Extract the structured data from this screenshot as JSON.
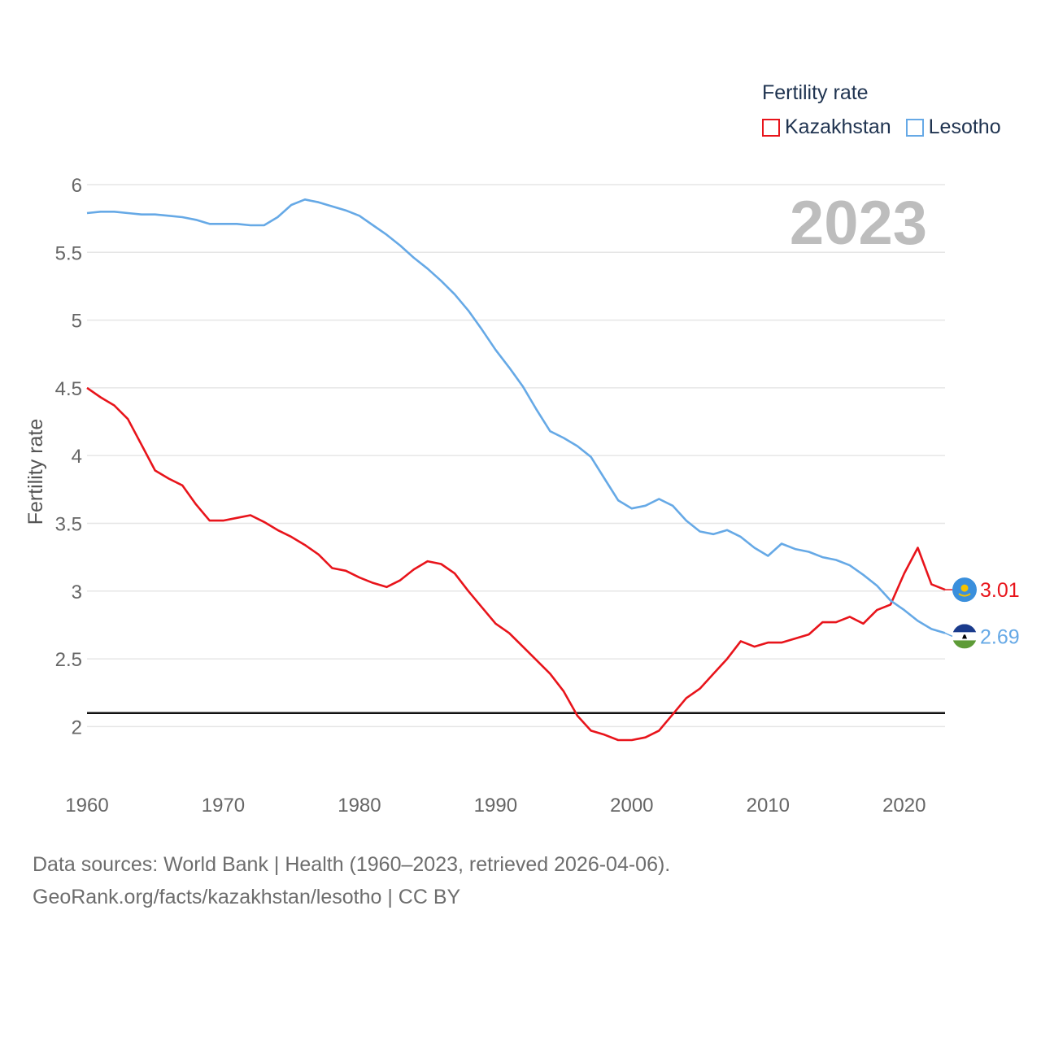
{
  "chart_data": {
    "type": "line",
    "title": "Fertility rate",
    "ylabel": "Fertility rate",
    "xlabel": "",
    "year_label": "2023",
    "xlim": [
      1960,
      2023
    ],
    "ylim": [
      1.6,
      6.0
    ],
    "yticks": [
      2,
      2.5,
      3,
      3.5,
      4,
      4.5,
      5,
      5.5,
      6
    ],
    "ytick_labels": [
      "2",
      "2.5",
      "3",
      "3.5",
      "4",
      "4.5",
      "5",
      "5.5",
      "6"
    ],
    "xticks": [
      1960,
      1970,
      1980,
      1990,
      2000,
      2010,
      2020
    ],
    "xtick_labels": [
      "1960",
      "1970",
      "1980",
      "1990",
      "2000",
      "2010",
      "2020"
    ],
    "reference_line": 2.1,
    "grid": true,
    "legend_position": "top-right",
    "x": [
      1960,
      1961,
      1962,
      1963,
      1964,
      1965,
      1966,
      1967,
      1968,
      1969,
      1970,
      1971,
      1972,
      1973,
      1974,
      1975,
      1976,
      1977,
      1978,
      1979,
      1980,
      1981,
      1982,
      1983,
      1984,
      1985,
      1986,
      1987,
      1988,
      1989,
      1990,
      1991,
      1992,
      1993,
      1994,
      1995,
      1996,
      1997,
      1998,
      1999,
      2000,
      2001,
      2002,
      2003,
      2004,
      2005,
      2006,
      2007,
      2008,
      2009,
      2010,
      2011,
      2012,
      2013,
      2014,
      2015,
      2016,
      2017,
      2018,
      2019,
      2020,
      2021,
      2022,
      2023
    ],
    "series": [
      {
        "name": "Kazakhstan",
        "color": "#e8141b",
        "end_label": "3.01",
        "values": [
          4.5,
          4.43,
          4.37,
          4.27,
          4.08,
          3.89,
          3.83,
          3.78,
          3.64,
          3.52,
          3.52,
          3.54,
          3.56,
          3.51,
          3.45,
          3.4,
          3.34,
          3.27,
          3.17,
          3.15,
          3.1,
          3.06,
          3.03,
          3.08,
          3.16,
          3.22,
          3.2,
          3.13,
          3.0,
          2.88,
          2.76,
          2.69,
          2.59,
          2.49,
          2.39,
          2.26,
          2.08,
          1.97,
          1.94,
          1.9,
          1.9,
          1.92,
          1.97,
          2.09,
          2.21,
          2.28,
          2.39,
          2.5,
          2.63,
          2.59,
          2.62,
          2.62,
          2.65,
          2.68,
          2.77,
          2.77,
          2.81,
          2.76,
          2.86,
          2.9,
          3.13,
          3.32,
          3.05,
          3.01
        ]
      },
      {
        "name": "Lesotho",
        "color": "#66a9e6",
        "end_label": "2.69",
        "values": [
          5.79,
          5.8,
          5.8,
          5.79,
          5.78,
          5.78,
          5.77,
          5.76,
          5.74,
          5.71,
          5.71,
          5.71,
          5.7,
          5.7,
          5.76,
          5.85,
          5.89,
          5.87,
          5.84,
          5.81,
          5.77,
          5.7,
          5.63,
          5.55,
          5.46,
          5.38,
          5.29,
          5.19,
          5.07,
          4.93,
          4.78,
          4.65,
          4.51,
          4.34,
          4.18,
          4.13,
          4.07,
          3.99,
          3.83,
          3.67,
          3.61,
          3.63,
          3.68,
          3.63,
          3.52,
          3.44,
          3.42,
          3.45,
          3.4,
          3.32,
          3.26,
          3.35,
          3.31,
          3.29,
          3.25,
          3.23,
          3.19,
          3.12,
          3.04,
          2.93,
          2.86,
          2.78,
          2.72,
          2.69
        ]
      }
    ]
  },
  "legend": {
    "title": "Fertility rate",
    "items": [
      {
        "label": "Kazakhstan",
        "color": "#e8141b"
      },
      {
        "label": "Lesotho",
        "color": "#66a9e6"
      }
    ]
  },
  "flags": {
    "kazakhstan": {
      "name": "kazakhstan-flag-icon",
      "bg": "#3a8fdc",
      "sun": "#f5c200"
    },
    "lesotho": {
      "name": "lesotho-flag-icon",
      "top": "#1a3b8c",
      "mid": "#ffffff",
      "bottom": "#5d9b37"
    }
  },
  "footer": {
    "source_line": "Data sources: World Bank | Health (1960–2023, retrieved 2026-04-06).",
    "credit_line": "GeoRank.org/facts/kazakhstan/lesotho | CC BY"
  }
}
